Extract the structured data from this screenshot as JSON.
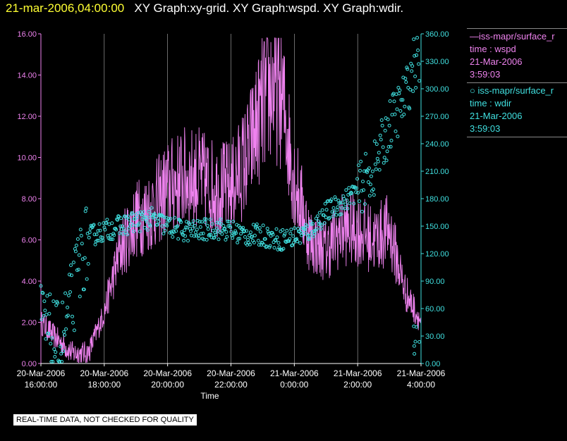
{
  "header": {
    "date": "21-mar-2006,04:00:00",
    "graphs": "XY Graph:xy-grid.  XY Graph:wspd.  XY Graph:wdir."
  },
  "legend": {
    "wspd": {
      "source": "iss-mapr/surface_r",
      "var": "time : wspd",
      "date": "21-Mar-2006",
      "time": "3:59:03"
    },
    "wdir": {
      "source": "iss-mapr/surface_r",
      "var": "time : wdir",
      "date": "21-Mar-2006",
      "time": "3:59:03"
    }
  },
  "disclaimer": "REAL-TIME DATA, NOT CHECKED FOR QUALITY",
  "colors": {
    "wspd": "#ee82ee",
    "wdir": "#40e0e0",
    "grid": "#ffffff",
    "title_date": "#ffff33"
  },
  "chart_data": {
    "type": "line",
    "xlabel": "Time",
    "x_ticks": [
      [
        "20-Mar-2006",
        "16:00:00"
      ],
      [
        "20-Mar-2006",
        "18:00:00"
      ],
      [
        "20-Mar-2006",
        "20:00:00"
      ],
      [
        "20-Mar-2006",
        "22:00:00"
      ],
      [
        "21-Mar-2006",
        "0:00:00"
      ],
      [
        "21-Mar-2006",
        "2:00:00"
      ],
      [
        "21-Mar-2006",
        "4:00:00"
      ]
    ],
    "x_range_hours": [
      16,
      28
    ],
    "y_left_ticks": [
      "0.00",
      "2.00",
      "4.00",
      "6.00",
      "8.00",
      "10.00",
      "12.00",
      "14.00",
      "16.00"
    ],
    "y_left_range": [
      0,
      16
    ],
    "y_right_ticks": [
      "0.00",
      "30.00",
      "60.00",
      "90.00",
      "120.00",
      "150.00",
      "180.00",
      "210.00",
      "240.00",
      "270.00",
      "300.00",
      "330.00",
      "360.00"
    ],
    "y_right_range": [
      0,
      360
    ],
    "grid": "vertical",
    "series": [
      {
        "name": "wspd",
        "axis": "left",
        "style": "line",
        "x_hours": [
          16.0,
          16.5,
          17.0,
          17.5,
          18.0,
          18.5,
          19.0,
          19.5,
          20.0,
          20.5,
          21.0,
          21.5,
          22.0,
          22.5,
          23.0,
          23.3,
          23.6,
          24.0,
          24.5,
          25.0,
          25.5,
          26.0,
          26.5,
          27.0,
          27.5,
          28.0
        ],
        "values": [
          2.0,
          1.2,
          0.5,
          0.5,
          2.5,
          5.5,
          7.0,
          7.5,
          8.5,
          9.0,
          9.0,
          8.5,
          8.5,
          10.0,
          12.5,
          13.5,
          13.0,
          9.0,
          6.0,
          5.5,
          6.5,
          6.5,
          6.0,
          6.5,
          3.5,
          2.0
        ]
      },
      {
        "name": "wdir",
        "axis": "right",
        "style": "points",
        "x_hours": [
          16.0,
          16.3,
          16.6,
          17.0,
          17.3,
          17.6,
          18.0,
          18.5,
          19.0,
          19.5,
          20.0,
          20.5,
          21.0,
          21.5,
          22.0,
          22.5,
          23.0,
          23.5,
          24.0,
          24.5,
          25.0,
          25.5,
          26.0,
          26.5,
          27.0,
          27.5,
          27.8,
          28.0
        ],
        "values": [
          45,
          30,
          20,
          70,
          120,
          140,
          145,
          150,
          155,
          158,
          150,
          145,
          145,
          148,
          145,
          140,
          140,
          135,
          138,
          145,
          165,
          175,
          190,
          210,
          260,
          290,
          330,
          50
        ]
      }
    ]
  }
}
